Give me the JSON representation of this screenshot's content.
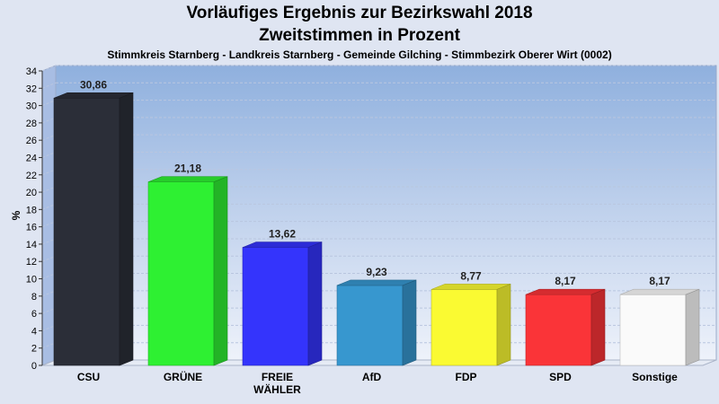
{
  "chart_data": {
    "type": "bar",
    "title": "Vorläufiges Ergebnis zur Bezirkswahl 2018",
    "subtitle": "Zweitstimmen in Prozent",
    "description": "Stimmkreis Starnberg - Landkreis Starnberg - Gemeinde Gilching - Stimmbezirk Oberer Wirt (0002)",
    "ylabel": "%",
    "xlabel": "",
    "ylim": [
      0,
      34
    ],
    "ytick_step": 2,
    "grid": true,
    "categories": [
      {
        "lines": [
          "CSU"
        ]
      },
      {
        "lines": [
          "GRÜNE"
        ]
      },
      {
        "lines": [
          "FREIE",
          "WÄHLER"
        ]
      },
      {
        "lines": [
          "AfD"
        ]
      },
      {
        "lines": [
          "FDP"
        ]
      },
      {
        "lines": [
          "SPD"
        ]
      },
      {
        "lines": [
          "Sonstige"
        ]
      }
    ],
    "values": [
      30.86,
      21.18,
      13.62,
      9.23,
      8.77,
      8.17,
      8.17
    ],
    "value_labels": [
      "30,86",
      "21,18",
      "13,62",
      "9,23",
      "8,77",
      "8,17",
      "8,17"
    ],
    "colors": [
      "#2b2e38",
      "#2ef032",
      "#3434fc",
      "#3797cf",
      "#fafa32",
      "#fa3438",
      "#fafafa"
    ]
  }
}
